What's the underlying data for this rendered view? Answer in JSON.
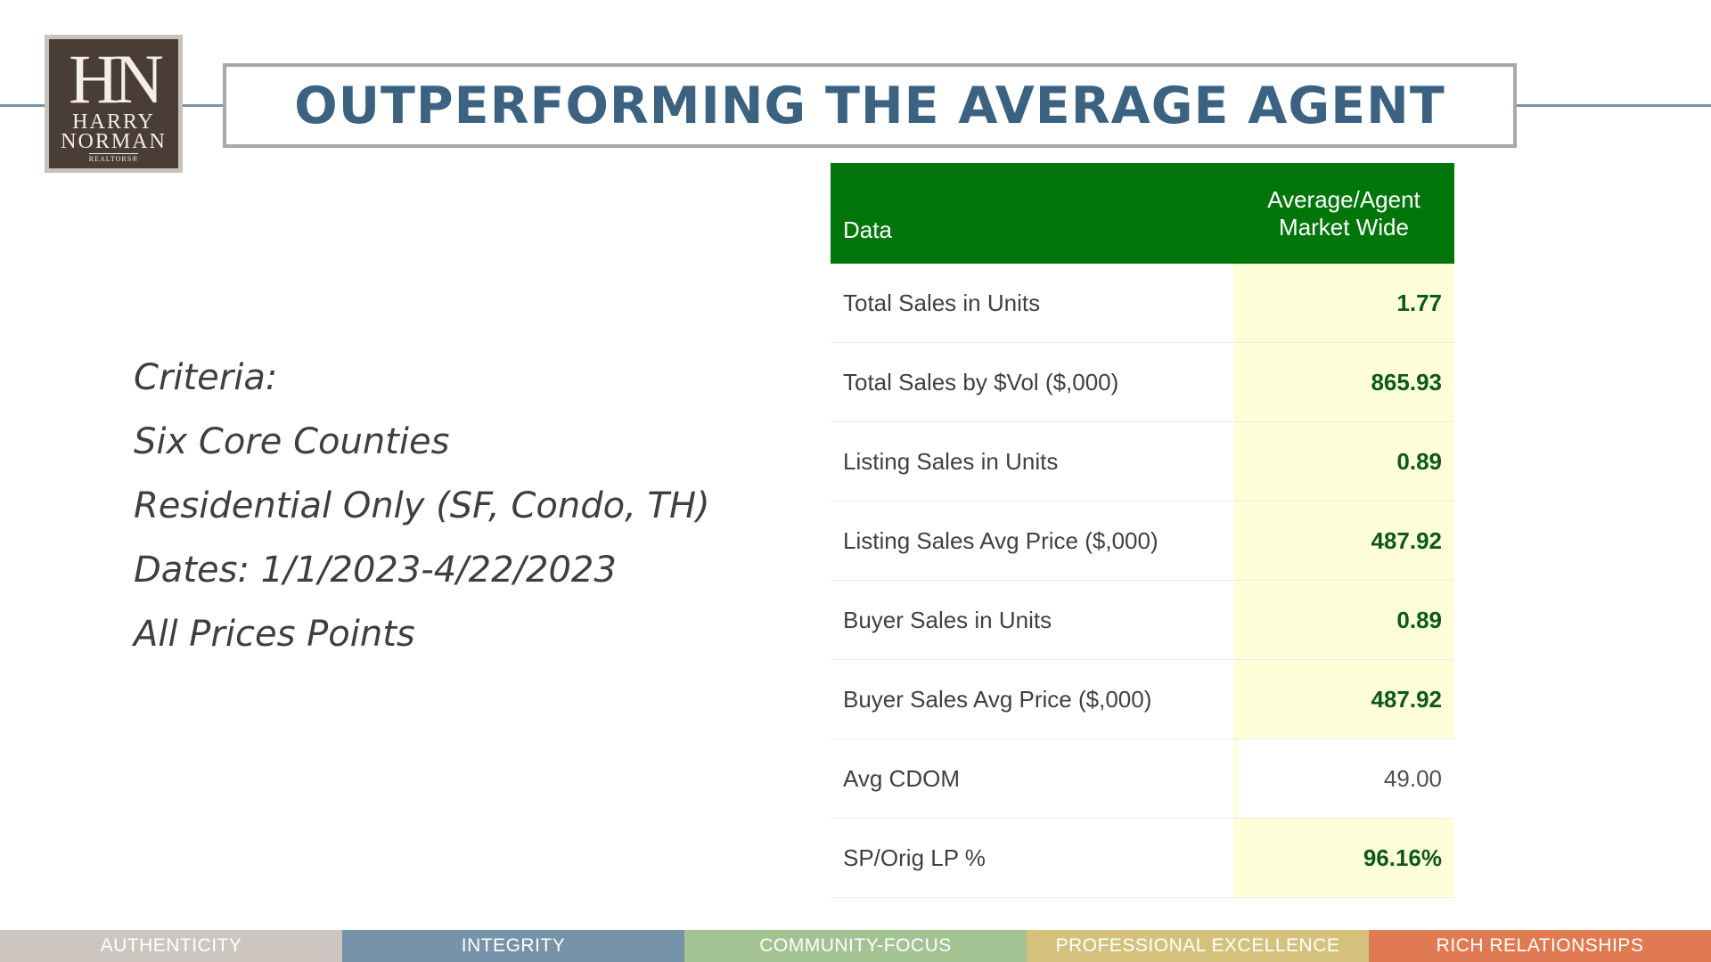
{
  "logo": {
    "mono": "HN",
    "line1": "HARRY",
    "line2": "NORMAN",
    "sub": "REALTORS®"
  },
  "title": "OUTPERFORMING THE AVERAGE AGENT",
  "criteria": [
    "Criteria:",
    "Six Core Counties",
    "Residential Only (SF, Condo, TH)",
    "Dates: 1/1/2023-4/22/2023",
    "All Prices Points"
  ],
  "table": {
    "header": {
      "data": "Data",
      "value_line1": "Average/Agent",
      "value_line2": "Market Wide"
    },
    "rows": [
      {
        "label": "Total Sales in Units",
        "value": "1.77",
        "highlight": true
      },
      {
        "label": "Total Sales by $Vol ($,000)",
        "value": "865.93",
        "highlight": true
      },
      {
        "label": "Listing Sales in Units",
        "value": "0.89",
        "highlight": true
      },
      {
        "label": "Listing Sales Avg Price ($,000)",
        "value": "487.92",
        "highlight": true
      },
      {
        "label": "Buyer Sales in Units",
        "value": "0.89",
        "highlight": true
      },
      {
        "label": "Buyer Sales Avg Price ($,000)",
        "value": "487.92",
        "highlight": true
      },
      {
        "label": "Avg CDOM",
        "value": "49.00",
        "highlight": false
      },
      {
        "label": "SP/Orig LP %",
        "value": "96.16%",
        "highlight": true
      }
    ]
  },
  "footer": [
    {
      "label": "AUTHENTICITY",
      "color": "#cdc6c0"
    },
    {
      "label": "INTEGRITY",
      "color": "#7693aa"
    },
    {
      "label": "COMMUNITY-FOCUS",
      "color": "#a3c393"
    },
    {
      "label": "PROFESSIONAL EXCELLENCE",
      "color": "#d4c27c"
    },
    {
      "label": "RICH RELATIONSHIPS",
      "color": "#e07a52"
    }
  ],
  "colors": {
    "title": "#3c6282",
    "header_bg": "#00760a",
    "value_bg": "#fefed8",
    "value_text": "#0c5a16"
  }
}
